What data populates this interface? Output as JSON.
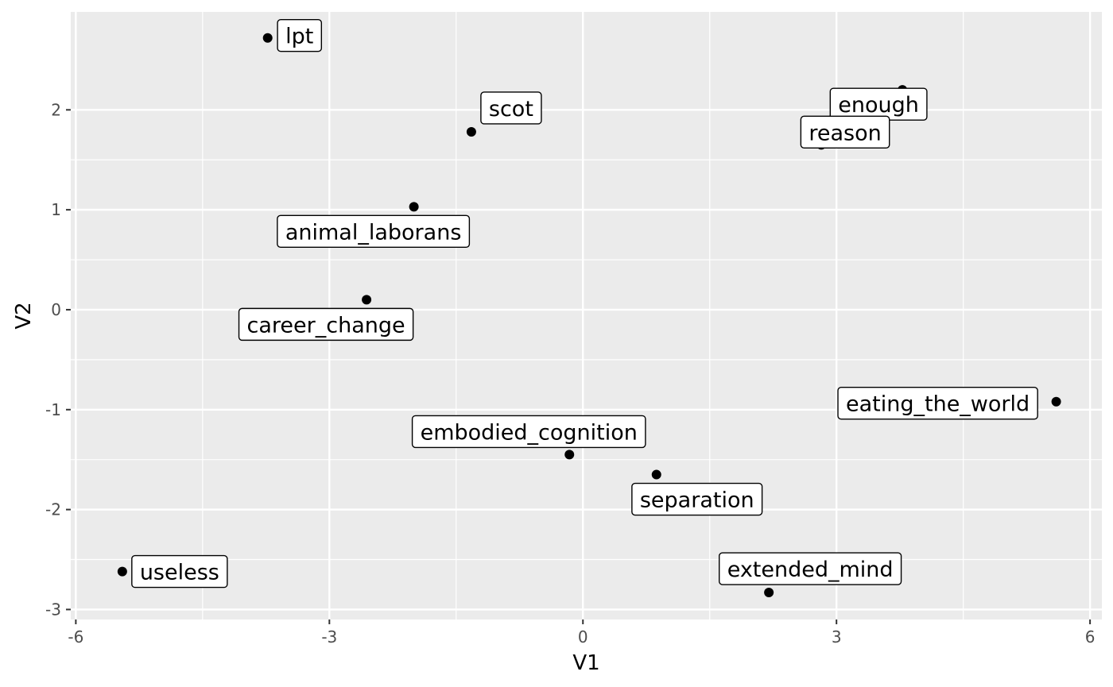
{
  "chart_data": {
    "type": "scatter",
    "xlabel": "V1",
    "ylabel": "V2",
    "xlim": [
      -6.06,
      6.14
    ],
    "ylim": [
      -3.1,
      2.98
    ],
    "xticks": [
      -6,
      -3,
      0,
      3,
      6
    ],
    "xtick_labels": [
      "-6",
      "-3",
      "0",
      "3",
      "6"
    ],
    "yticks": [
      -3,
      -2,
      -1,
      0,
      1,
      2
    ],
    "ytick_labels": [
      "-3",
      "-2",
      "-1",
      "0",
      "1",
      "2"
    ],
    "grid": true,
    "points": [
      {
        "label": "lpt",
        "x": -3.73,
        "y": 2.72
      },
      {
        "label": "scot",
        "x": -1.32,
        "y": 1.78
      },
      {
        "label": "enough",
        "x": 3.78,
        "y": 2.2
      },
      {
        "label": "reason",
        "x": 2.82,
        "y": 1.65
      },
      {
        "label": "animal_laborans",
        "x": -2.0,
        "y": 1.03
      },
      {
        "label": "career_change",
        "x": -2.56,
        "y": 0.1
      },
      {
        "label": "eating_the_world",
        "x": 5.6,
        "y": -0.92
      },
      {
        "label": "embodied_cognition",
        "x": -0.16,
        "y": -1.45
      },
      {
        "label": "separation",
        "x": 0.87,
        "y": -1.65
      },
      {
        "label": "useless",
        "x": -5.45,
        "y": -2.62
      },
      {
        "label": "extended_mind",
        "x": 2.2,
        "y": -2.83
      }
    ]
  },
  "colors": {
    "panel": "#ebebeb",
    "grid": "#ffffff",
    "point": "#000000"
  }
}
